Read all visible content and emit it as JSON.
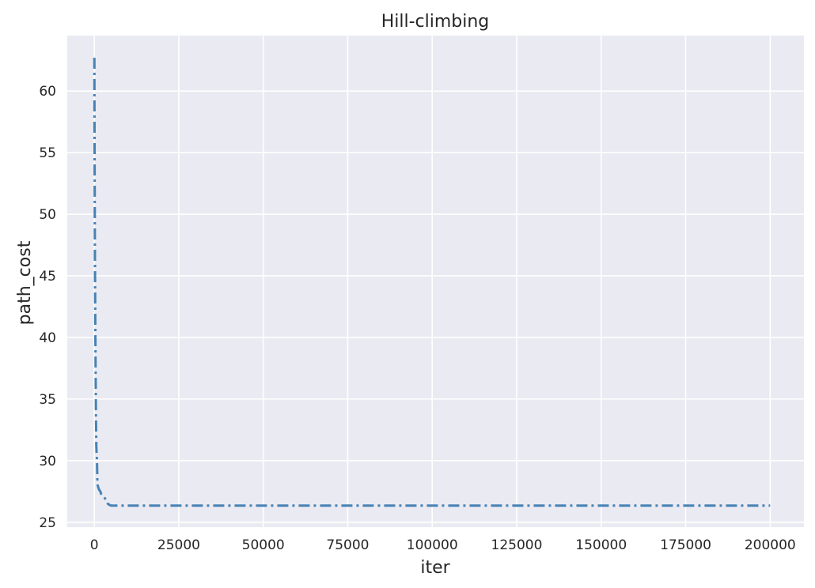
{
  "chart_data": {
    "type": "line",
    "title": "Hill-climbing",
    "xlabel": "iter",
    "ylabel": "path_cost",
    "xlim": [
      -8000,
      210000
    ],
    "ylim": [
      24.6,
      64.5
    ],
    "xticks": [
      0,
      25000,
      50000,
      75000,
      100000,
      125000,
      150000,
      175000,
      200000
    ],
    "yticks": [
      25,
      30,
      35,
      40,
      45,
      50,
      55,
      60
    ],
    "xtick_labels": [
      "0",
      "25000",
      "50000",
      "75000",
      "100000",
      "125000",
      "150000",
      "175000",
      "200000"
    ],
    "ytick_labels": [
      "25",
      "30",
      "35",
      "40",
      "45",
      "50",
      "55",
      "60"
    ],
    "grid": true,
    "background": "#eaeaf2",
    "series": [
      {
        "color": "#4682b4",
        "linestyle": "dashdot",
        "x": [
          0,
          30,
          60,
          100,
          150,
          200,
          250,
          300,
          400,
          500,
          600,
          700,
          800,
          900,
          1000,
          1200,
          1500,
          1800,
          2000,
          2500,
          3000,
          3500,
          4000,
          4500,
          5000,
          10000,
          50000,
          100000,
          150000,
          200000
        ],
        "y": [
          62.7,
          62.5,
          58.0,
          54.0,
          50.0,
          46.0,
          44.0,
          41.0,
          37.0,
          33.5,
          31.2,
          30.5,
          30.0,
          28.5,
          28.0,
          27.8,
          27.6,
          27.5,
          27.3,
          27.2,
          27.0,
          26.8,
          26.5,
          26.4,
          26.35,
          26.35,
          26.35,
          26.35,
          26.35,
          26.35
        ]
      }
    ]
  }
}
